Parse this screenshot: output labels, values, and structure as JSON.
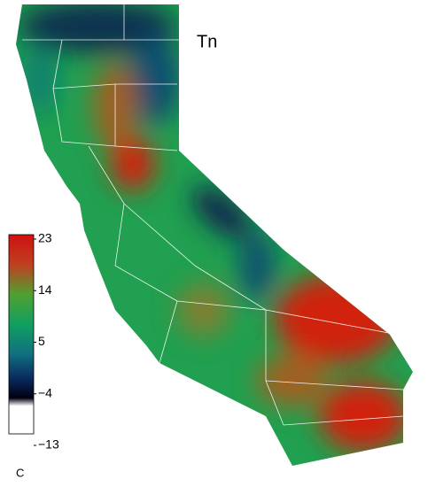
{
  "title": "Tn",
  "colorbar": {
    "unit": "C",
    "lim": [
      -13,
      23
    ],
    "ticks": [
      23,
      14,
      5,
      {
        "value": -4,
        "label": "−4"
      },
      {
        "value": -13,
        "label": "−13"
      }
    ]
  }
}
